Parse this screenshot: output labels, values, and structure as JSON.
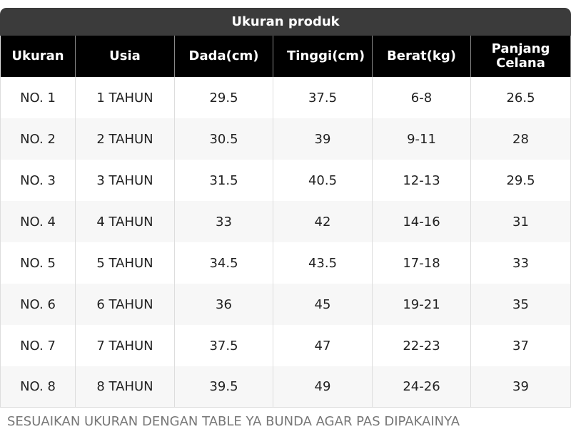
{
  "header": {
    "title": "Ukuran produk"
  },
  "table": {
    "columns": [
      "Ukuran",
      "Usia",
      "Dada(cm)",
      "Tinggi(cm)",
      "Berat(kg)",
      "Panjang Celana"
    ],
    "rows": [
      [
        "NO. 1",
        "1 TAHUN",
        "29.5",
        "37.5",
        "6-8",
        "26.5"
      ],
      [
        "NO. 2",
        "2 TAHUN",
        "30.5",
        "39",
        "9-11",
        "28"
      ],
      [
        "NO. 3",
        "3 TAHUN",
        "31.5",
        "40.5",
        "12-13",
        "29.5"
      ],
      [
        "NO. 4",
        "4 TAHUN",
        "33",
        "42",
        "14-16",
        "31"
      ],
      [
        "NO. 5",
        "5 TAHUN",
        "34.5",
        "43.5",
        "17-18",
        "33"
      ],
      [
        "NO. 6",
        "6 TAHUN",
        "36",
        "45",
        "19-21",
        "35"
      ],
      [
        "NO. 7",
        "7 TAHUN",
        "37.5",
        "47",
        "22-23",
        "37"
      ],
      [
        "NO. 8",
        "8 TAHUN",
        "39.5",
        "49",
        "24-26",
        "39"
      ]
    ]
  },
  "footer": {
    "note": "SESUAIKAN UKURAN DENGAN TABLE YA BUNDA AGAR PAS DIPAKAINYA"
  }
}
